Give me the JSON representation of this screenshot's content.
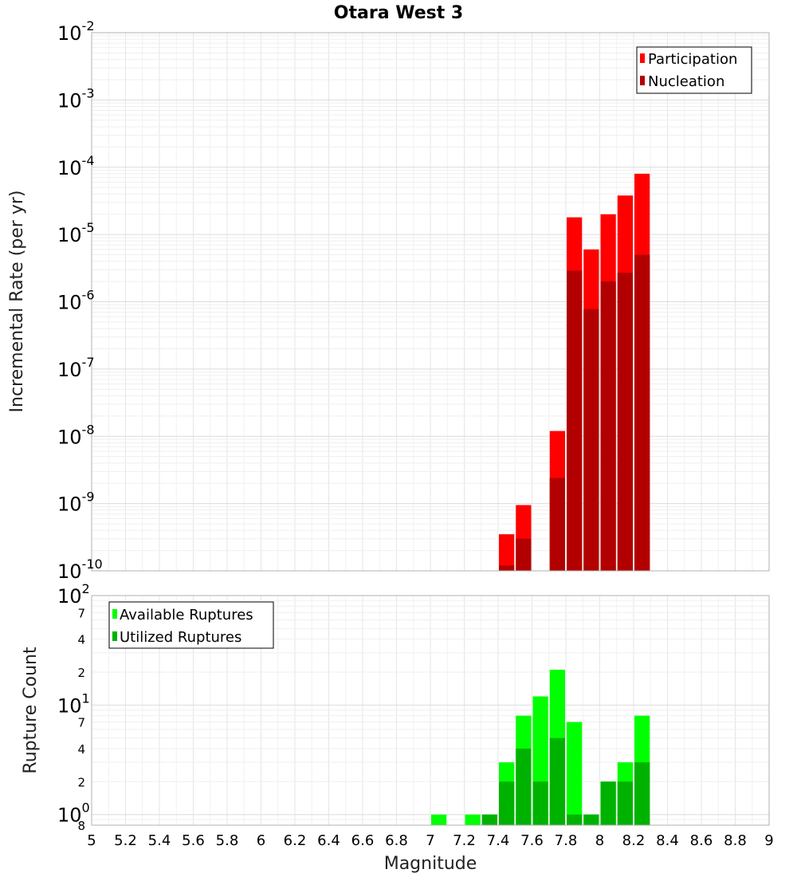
{
  "chart_data": [
    {
      "type": "bar",
      "title": "Otara West 3",
      "xlabel": "",
      "ylabel": "Incremental Rate (per yr)",
      "yscale": "log",
      "ylim": [
        1e-10,
        0.01
      ],
      "xlim": [
        5,
        9
      ],
      "x_ticks": [
        "5",
        "5.2",
        "5.4",
        "5.6",
        "5.8",
        "6",
        "6.2",
        "6.4",
        "6.6",
        "6.8",
        "7",
        "7.2",
        "7.4",
        "7.6",
        "7.8",
        "8",
        "8.2",
        "8.4",
        "8.6",
        "8.8",
        "9"
      ],
      "y_ticks": [
        {
          "base": "10",
          "exp": "-2"
        },
        {
          "base": "10",
          "exp": "-3"
        },
        {
          "base": "10",
          "exp": "-4"
        },
        {
          "base": "10",
          "exp": "-5"
        },
        {
          "base": "10",
          "exp": "-6"
        },
        {
          "base": "10",
          "exp": "-7"
        },
        {
          "base": "10",
          "exp": "-8"
        },
        {
          "base": "10",
          "exp": "-9"
        },
        {
          "base": "10",
          "exp": "-10"
        }
      ],
      "legend_position": "top-right",
      "series": [
        {
          "name": "Participation",
          "color": "#ff0000",
          "points": [
            {
              "x": 7.45,
              "y": 3.5e-10
            },
            {
              "x": 7.55,
              "y": 9.5e-10
            },
            {
              "x": 7.75,
              "y": 1.2e-08
            },
            {
              "x": 7.85,
              "y": 1.8e-05
            },
            {
              "x": 7.95,
              "y": 6e-06
            },
            {
              "x": 8.05,
              "y": 2e-05
            },
            {
              "x": 8.15,
              "y": 3.8e-05
            },
            {
              "x": 8.25,
              "y": 8e-05
            }
          ]
        },
        {
          "name": "Nucleation",
          "color": "#b20000",
          "points": [
            {
              "x": 7.45,
              "y": 1.2e-10
            },
            {
              "x": 7.55,
              "y": 3e-10
            },
            {
              "x": 7.75,
              "y": 2.4e-09
            },
            {
              "x": 7.85,
              "y": 2.9e-06
            },
            {
              "x": 7.95,
              "y": 7.8e-07
            },
            {
              "x": 8.05,
              "y": 2e-06
            },
            {
              "x": 8.15,
              "y": 2.7e-06
            },
            {
              "x": 8.25,
              "y": 5e-06
            }
          ]
        }
      ]
    },
    {
      "type": "bar",
      "title": "",
      "xlabel": "Magnitude",
      "ylabel": "Rupture Count",
      "yscale": "log",
      "ylim": [
        0.8,
        100
      ],
      "xlim": [
        5,
        9
      ],
      "x_ticks": [
        "5",
        "5.2",
        "5.4",
        "5.6",
        "5.8",
        "6",
        "6.2",
        "6.4",
        "6.6",
        "6.8",
        "7",
        "7.2",
        "7.4",
        "7.6",
        "7.8",
        "8",
        "8.2",
        "8.4",
        "8.6",
        "8.8",
        "9"
      ],
      "y_major_ticks": [
        {
          "value": 100,
          "base": "10",
          "exp": "2"
        },
        {
          "value": 10,
          "base": "10",
          "exp": "1"
        },
        {
          "value": 1,
          "base": "10",
          "exp": "0"
        }
      ],
      "y_minor_ticks": [
        {
          "value": 70,
          "label": "7"
        },
        {
          "value": 40,
          "label": "4"
        },
        {
          "value": 20,
          "label": "2"
        },
        {
          "value": 7,
          "label": "7"
        },
        {
          "value": 4,
          "label": "4"
        },
        {
          "value": 2,
          "label": "2"
        },
        {
          "value": 0.8,
          "label": "8"
        }
      ],
      "legend_position": "top-left",
      "series": [
        {
          "name": "Available Ruptures",
          "color": "#00ff00",
          "points": [
            {
              "x": 7.05,
              "y": 1
            },
            {
              "x": 7.25,
              "y": 1
            },
            {
              "x": 7.35,
              "y": 1
            },
            {
              "x": 7.45,
              "y": 3
            },
            {
              "x": 7.55,
              "y": 8
            },
            {
              "x": 7.65,
              "y": 12
            },
            {
              "x": 7.75,
              "y": 21
            },
            {
              "x": 7.85,
              "y": 7
            },
            {
              "x": 7.95,
              "y": 1
            },
            {
              "x": 8.05,
              "y": 2
            },
            {
              "x": 8.15,
              "y": 3
            },
            {
              "x": 8.25,
              "y": 8
            }
          ]
        },
        {
          "name": "Utilized Ruptures",
          "color": "#00b200",
          "points": [
            {
              "x": 7.35,
              "y": 1
            },
            {
              "x": 7.45,
              "y": 2
            },
            {
              "x": 7.55,
              "y": 4
            },
            {
              "x": 7.65,
              "y": 2
            },
            {
              "x": 7.75,
              "y": 5
            },
            {
              "x": 7.85,
              "y": 1
            },
            {
              "x": 7.95,
              "y": 1
            },
            {
              "x": 8.05,
              "y": 2
            },
            {
              "x": 8.15,
              "y": 2
            },
            {
              "x": 8.25,
              "y": 3
            }
          ]
        }
      ]
    }
  ]
}
